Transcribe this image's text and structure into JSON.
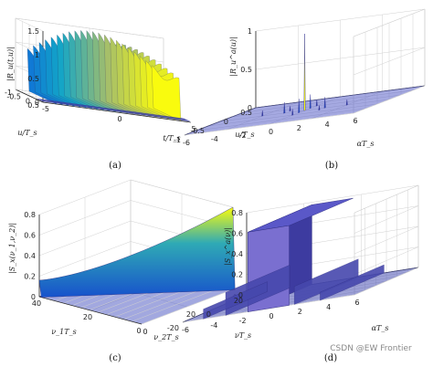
{
  "chart_data": [
    {
      "type": "surface",
      "caption": "(a)",
      "zlabel": "|R_u(t,u)|",
      "xlabel": "t/T_s",
      "ylabel": "u/T_s",
      "zticks": [
        "0",
        "0.5",
        "1",
        "1.5"
      ],
      "xticks": [
        "-5",
        "0",
        "5"
      ],
      "yticks": [
        "-1",
        "-0.5",
        "0",
        "0.5"
      ],
      "zlim": [
        0,
        1.5
      ],
      "xlim": [
        -5,
        5
      ],
      "ylim": [
        -1,
        1
      ],
      "ridge_count": 22,
      "ridge_peak": 1.45
    },
    {
      "type": "surface",
      "caption": "(b)",
      "zlabel": "|R_u^a(u)|",
      "xlabel": "αT_s",
      "ylabel": "u/T_s",
      "zticks": [
        "0",
        "0.5",
        "1"
      ],
      "xticks": [
        "-6",
        "-4",
        "-2",
        "0",
        "2",
        "4",
        "6"
      ],
      "yticks": [
        "-1",
        "-0.5",
        "0",
        "0.5"
      ],
      "zlim": [
        0,
        1
      ],
      "xlim": [
        -6,
        6
      ],
      "ylim": [
        -1,
        1
      ],
      "main_peak": 1.0
    },
    {
      "type": "surface",
      "caption": "(c)",
      "zlabel": "|S_x(ν_1,ν_2)|",
      "xlabel": "ν_2T_s",
      "ylabel": "ν_1T_s",
      "zticks": [
        "0",
        "0.2",
        "0.4",
        "0.6",
        "0.8"
      ],
      "xticks": [
        "0",
        "20",
        "40"
      ],
      "yticks": [
        "0",
        "20",
        "40"
      ],
      "zlim": [
        0,
        0.8
      ],
      "xlim": [
        0,
        40
      ],
      "ylim": [
        0,
        40
      ],
      "diagonal_peak": 0.8
    },
    {
      "type": "surface",
      "caption": "(d)",
      "zlabel": "|S_x^a(ν)|",
      "xlabel": "αT_s",
      "ylabel": "νT_s",
      "zticks": [
        "0",
        "0.2",
        "0.4",
        "0.6",
        "0.8"
      ],
      "xticks": [
        "-6",
        "-4",
        "-2",
        "0",
        "2",
        "4",
        "6"
      ],
      "yticks": [
        "-20",
        "0",
        "20"
      ],
      "zlim": [
        0,
        0.8
      ],
      "xlim": [
        -6,
        6
      ],
      "ylim": [
        -30,
        30
      ],
      "band_peak": 0.78
    }
  ],
  "watermark": "CSDN @EW Frontier"
}
